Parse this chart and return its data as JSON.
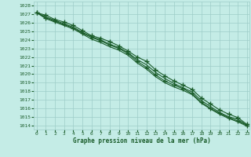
{
  "xlabel": "Graphe pression niveau de la mer (hPa)",
  "ylim": [
    1013.5,
    1028.5
  ],
  "xlim": [
    0,
    23
  ],
  "yticks": [
    1014,
    1015,
    1016,
    1017,
    1018,
    1019,
    1020,
    1021,
    1022,
    1023,
    1024,
    1025,
    1026,
    1027,
    1028
  ],
  "xticks": [
    0,
    1,
    2,
    3,
    4,
    5,
    6,
    7,
    8,
    9,
    10,
    11,
    12,
    13,
    14,
    15,
    16,
    17,
    18,
    19,
    20,
    21,
    22,
    23
  ],
  "background_color": "#c4ece6",
  "grid_color": "#9ecdc8",
  "line_color": "#1a5c2a",
  "series": [
    [
      1027.2,
      1026.9,
      1026.4,
      1026.1,
      1025.7,
      1025.1,
      1024.5,
      1024.2,
      1023.8,
      1023.3,
      1022.7,
      1022.0,
      1021.5,
      1020.5,
      1019.8,
      1019.2,
      1018.7,
      1018.2,
      1017.2,
      1016.5,
      1015.8,
      1015.3,
      1014.9,
      1014.1
    ],
    [
      1027.2,
      1026.7,
      1026.3,
      1025.9,
      1025.5,
      1024.9,
      1024.4,
      1024.0,
      1023.5,
      1023.1,
      1022.5,
      1021.7,
      1021.1,
      1020.2,
      1019.5,
      1018.9,
      1018.4,
      1017.9,
      1016.9,
      1016.2,
      1015.5,
      1015.0,
      1014.7,
      1014.0
    ],
    [
      1027.2,
      1026.5,
      1026.1,
      1025.7,
      1025.3,
      1024.7,
      1024.1,
      1023.7,
      1023.2,
      1022.8,
      1022.2,
      1021.3,
      1020.6,
      1019.7,
      1019.0,
      1018.5,
      1018.1,
      1017.6,
      1016.6,
      1015.9,
      1015.3,
      1014.8,
      1014.4,
      1013.9
    ],
    [
      1027.2,
      1026.6,
      1026.2,
      1025.8,
      1025.4,
      1024.8,
      1024.3,
      1023.9,
      1023.4,
      1023.0,
      1022.4,
      1021.5,
      1020.8,
      1019.9,
      1019.2,
      1018.7,
      1018.3,
      1017.7,
      1016.7,
      1016.0,
      1015.4,
      1014.9,
      1014.5,
      1014.0
    ]
  ],
  "marker_indices": [
    0,
    3
  ],
  "marker": "+",
  "marker_size": 4,
  "marker_linewidth": 1.0,
  "linewidth": 0.8
}
